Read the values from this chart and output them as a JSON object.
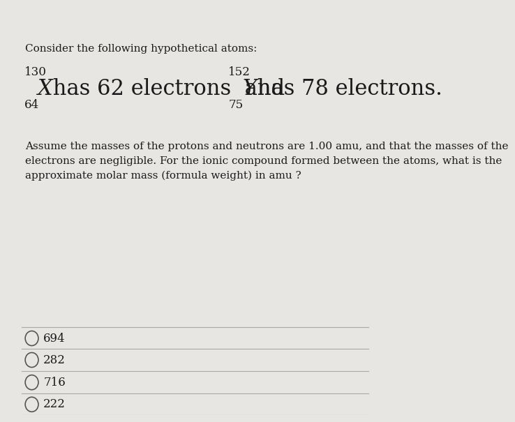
{
  "bg_color": "#e8e6e3",
  "text_color": "#1a1a1a",
  "header_text": "Consider the following hypothetical atoms:",
  "atom1_mass": "130",
  "atom1_atomic": "64",
  "atom1_symbol": "X",
  "atom2_mass": "152",
  "atom2_atomic": "75",
  "atom2_symbol": "Y",
  "body_text": "Assume the masses of the protons and neutrons are 1.00 amu, and that the masses of the\nelectrons are negligible. For the ionic compound formed between the atoms, what is the\napproximate molar mass (formula weight) in amu ?",
  "choices": [
    "694",
    "282",
    "716",
    "222"
  ],
  "line_color": "#aaaaaa",
  "circle_color": "#555555",
  "header_fontsize": 11,
  "main_fontsize": 22,
  "body_fontsize": 11,
  "choice_fontsize": 12
}
